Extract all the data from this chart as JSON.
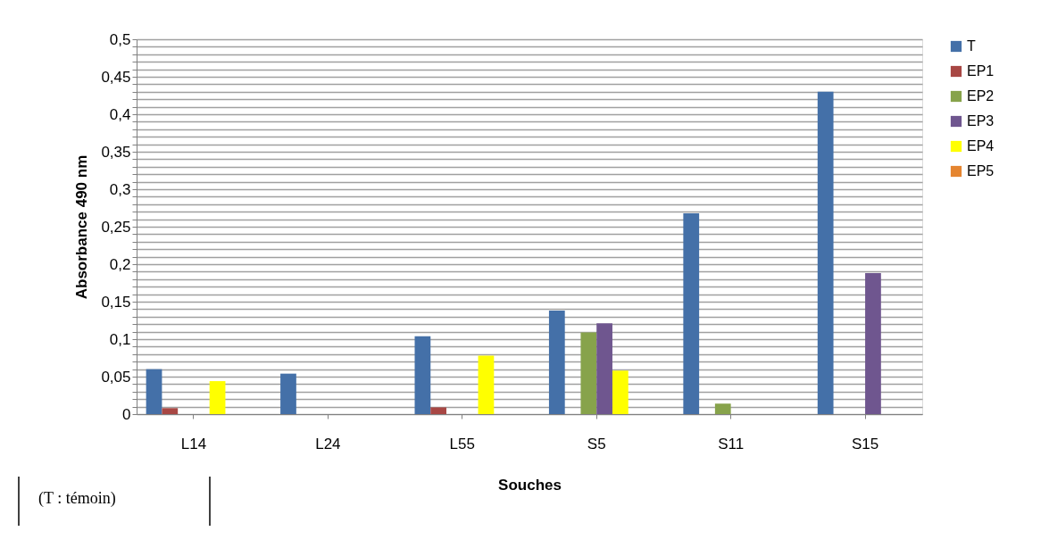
{
  "chart_data": {
    "type": "bar",
    "xlabel": "Souches",
    "ylabel": "Absorbance 490 nm",
    "categories": [
      "L14",
      "L24",
      "L55",
      "S5",
      "S11",
      "S15"
    ],
    "series": [
      {
        "name": "T",
        "color": "#4470a8",
        "values": [
          0.06,
          0.054,
          0.104,
          0.138,
          0.268,
          0.43
        ]
      },
      {
        "name": "EP1",
        "color": "#a84744",
        "values": [
          0.008,
          null,
          0.009,
          null,
          null,
          null
        ]
      },
      {
        "name": "EP2",
        "color": "#87a34b",
        "values": [
          null,
          null,
          null,
          0.109,
          0.014,
          null
        ]
      },
      {
        "name": "EP3",
        "color": "#6f568f",
        "values": [
          null,
          null,
          null,
          0.121,
          null,
          0.188
        ]
      },
      {
        "name": "EP4",
        "color": "#ffff00",
        "values": [
          0.044,
          null,
          0.078,
          0.058,
          null,
          null
        ]
      },
      {
        "name": "EP5",
        "color": "#e58530",
        "values": [
          null,
          null,
          null,
          null,
          null,
          null
        ]
      }
    ],
    "ylim": [
      0,
      0.5
    ],
    "yticks": [
      {
        "value": 0,
        "label": "0"
      },
      {
        "value": 0.01,
        "label": null
      },
      {
        "value": 0.02,
        "label": null
      },
      {
        "value": 0.03,
        "label": null
      },
      {
        "value": 0.04,
        "label": null
      },
      {
        "value": 0.05,
        "label": "0,05"
      },
      {
        "value": 0.06,
        "label": null
      },
      {
        "value": 0.07,
        "label": null
      },
      {
        "value": 0.08,
        "label": null
      },
      {
        "value": 0.09,
        "label": null
      },
      {
        "value": 0.1,
        "label": "0,1"
      },
      {
        "value": 0.11,
        "label": null
      },
      {
        "value": 0.12,
        "label": null
      },
      {
        "value": 0.13,
        "label": null
      },
      {
        "value": 0.14,
        "label": null
      },
      {
        "value": 0.15,
        "label": "0,15"
      },
      {
        "value": 0.16,
        "label": null
      },
      {
        "value": 0.17,
        "label": null
      },
      {
        "value": 0.18,
        "label": null
      },
      {
        "value": 0.19,
        "label": null
      },
      {
        "value": 0.2,
        "label": "0,2"
      },
      {
        "value": 0.21,
        "label": null
      },
      {
        "value": 0.22,
        "label": null
      },
      {
        "value": 0.23,
        "label": null
      },
      {
        "value": 0.24,
        "label": null
      },
      {
        "value": 0.25,
        "label": "0,25"
      },
      {
        "value": 0.26,
        "label": null
      },
      {
        "value": 0.27,
        "label": null
      },
      {
        "value": 0.28,
        "label": null
      },
      {
        "value": 0.29,
        "label": null
      },
      {
        "value": 0.3,
        "label": "0,3"
      },
      {
        "value": 0.31,
        "label": null
      },
      {
        "value": 0.32,
        "label": null
      },
      {
        "value": 0.33,
        "label": null
      },
      {
        "value": 0.34,
        "label": null
      },
      {
        "value": 0.35,
        "label": "0,35"
      },
      {
        "value": 0.36,
        "label": null
      },
      {
        "value": 0.37,
        "label": null
      },
      {
        "value": 0.38,
        "label": null
      },
      {
        "value": 0.39,
        "label": null
      },
      {
        "value": 0.4,
        "label": "0,4"
      },
      {
        "value": 0.41,
        "label": null
      },
      {
        "value": 0.42,
        "label": null
      },
      {
        "value": 0.43,
        "label": null
      },
      {
        "value": 0.44,
        "label": null
      },
      {
        "value": 0.45,
        "label": "0,45"
      },
      {
        "value": 0.46,
        "label": null
      },
      {
        "value": 0.47,
        "label": null
      },
      {
        "value": 0.48,
        "label": null
      },
      {
        "value": 0.49,
        "label": null
      },
      {
        "value": 0.5,
        "label": "0,5"
      }
    ],
    "grid": "y",
    "legend": "right",
    "annotations": [
      "(T : témoin)"
    ]
  }
}
